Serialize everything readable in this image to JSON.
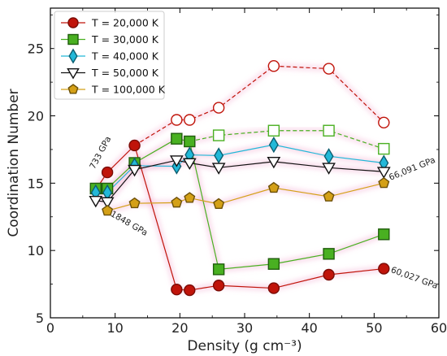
{
  "chart_data": {
    "type": "line",
    "xlabel": "Density (g cm⁻³)",
    "ylabel": "Coordination Number",
    "xlim": [
      0,
      60
    ],
    "ylim": [
      5,
      28
    ],
    "xticks": [
      0,
      10,
      20,
      30,
      40,
      50,
      60
    ],
    "yticks": [
      5,
      10,
      15,
      20,
      25
    ],
    "legend_position": "top-left",
    "series": [
      {
        "name": "T = 20,000 K",
        "color": "#c0140a",
        "marker": "circle",
        "x": [
          7.0,
          8.8,
          13.0,
          19.5,
          21.5,
          26.0,
          34.5,
          43.0,
          51.5
        ],
        "y": [
          14.5,
          15.8,
          17.8,
          7.1,
          7.05,
          7.4,
          7.2,
          8.2,
          8.65
        ],
        "filled": [
          true,
          true,
          true,
          true,
          true,
          true,
          true,
          true,
          true
        ],
        "alt_x": [
          13.0,
          19.5,
          21.5,
          26.0,
          34.5,
          43.0,
          51.5
        ],
        "alt_y": [
          17.8,
          19.7,
          19.7,
          20.6,
          23.7,
          23.5,
          19.5
        ]
      },
      {
        "name": "T = 30,000 K",
        "color": "#49b021",
        "marker": "square",
        "x": [
          7.0,
          8.8,
          13.0,
          19.5,
          21.5,
          26.0,
          34.5,
          43.0,
          51.5
        ],
        "y": [
          14.6,
          14.6,
          16.5,
          18.3,
          18.1,
          8.6,
          9.0,
          9.75,
          11.2
        ],
        "alt_x": [
          21.5,
          26.0,
          34.5,
          43.0,
          51.5
        ],
        "alt_y": [
          18.1,
          18.55,
          18.9,
          18.9,
          17.55
        ]
      },
      {
        "name": "T = 40,000 K",
        "color": "#22b8d8",
        "marker": "diamond",
        "x": [
          7.0,
          8.8,
          13.0,
          19.5,
          21.5,
          26.0,
          34.5,
          43.0,
          51.5
        ],
        "y": [
          14.3,
          14.3,
          16.3,
          16.25,
          17.1,
          17.05,
          17.85,
          17.0,
          16.5
        ]
      },
      {
        "name": "T = 50,000 K",
        "color": "#111111",
        "marker": "triangle-down",
        "x": [
          7.0,
          8.8,
          13.0,
          19.5,
          21.5,
          26.0,
          34.5,
          43.0,
          51.5
        ],
        "y": [
          13.7,
          13.6,
          16.0,
          16.7,
          16.5,
          16.15,
          16.6,
          16.15,
          15.85
        ]
      },
      {
        "name": "T = 100,000 K",
        "color": "#d4a017",
        "marker": "pentagon",
        "x": [
          8.8,
          13.0,
          19.5,
          21.5,
          26.0,
          34.5,
          43.0,
          51.5
        ],
        "y": [
          12.95,
          13.5,
          13.55,
          13.9,
          13.45,
          14.65,
          14.0,
          15.0
        ]
      }
    ],
    "annotations": [
      {
        "text": "733 GPa",
        "x": 6.8,
        "y": 16.0,
        "angle": -62
      },
      {
        "text": "1848 GPa",
        "x": 9.2,
        "y": 12.6,
        "angle": 30
      },
      {
        "text": "66,091 GPa",
        "x": 52.5,
        "y": 15.2,
        "angle": -22
      },
      {
        "text": "60,027 GPa",
        "x": 52.5,
        "y": 8.4,
        "angle": 20
      }
    ]
  }
}
